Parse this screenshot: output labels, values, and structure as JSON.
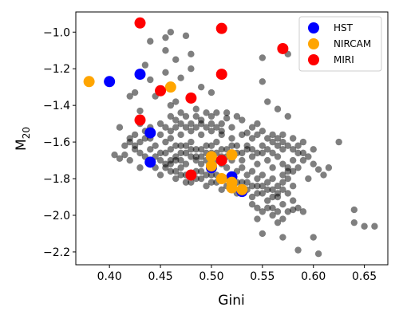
{
  "chart_data": {
    "type": "scatter",
    "xlabel": "Gini",
    "ylabel": "M20",
    "xlim": [
      0.367,
      0.673
    ],
    "ylim": [
      -2.27,
      -0.89
    ],
    "xticks": [
      0.4,
      0.45,
      0.5,
      0.55,
      0.6,
      0.65
    ],
    "xtick_labels": [
      "0.40",
      "0.45",
      "0.50",
      "0.55",
      "0.60",
      "0.65"
    ],
    "yticks": [
      -1.0,
      -1.2,
      -1.4,
      -1.6,
      -1.8,
      -2.0,
      -2.2
    ],
    "ytick_labels": [
      "−1.0",
      "−1.2",
      "−1.4",
      "−1.6",
      "−1.8",
      "−2.0",
      "−2.2"
    ],
    "grid": false,
    "legend_position": "top-right",
    "colors": {
      "background_points": "#000000",
      "HST": "#0000ff",
      "NIRCAM": "#ffa500",
      "MIRI": "#ff0000"
    },
    "background_cluster": {
      "description_note": "",
      "points": [
        [
          0.44,
          -1.05
        ],
        [
          0.455,
          -1.03
        ],
        [
          0.46,
          -1.0
        ],
        [
          0.475,
          -1.02
        ],
        [
          0.48,
          -1.12
        ],
        [
          0.455,
          -1.1
        ],
        [
          0.435,
          -1.18
        ],
        [
          0.44,
          -1.26
        ],
        [
          0.455,
          -1.22
        ],
        [
          0.42,
          -1.35
        ],
        [
          0.425,
          -1.33
        ],
        [
          0.43,
          -1.43
        ],
        [
          0.445,
          -1.35
        ],
        [
          0.46,
          -1.4
        ],
        [
          0.465,
          -1.38
        ],
        [
          0.47,
          -1.44
        ],
        [
          0.485,
          -1.42
        ],
        [
          0.49,
          -1.48
        ],
        [
          0.5,
          -1.46
        ],
        [
          0.51,
          -1.5
        ],
        [
          0.515,
          -1.47
        ],
        [
          0.52,
          -1.52
        ],
        [
          0.53,
          -1.48
        ],
        [
          0.535,
          -1.55
        ],
        [
          0.545,
          -1.5
        ],
        [
          0.55,
          -1.27
        ],
        [
          0.555,
          -1.38
        ],
        [
          0.565,
          -1.42
        ],
        [
          0.575,
          -1.46
        ],
        [
          0.58,
          -1.58
        ],
        [
          0.575,
          -1.12
        ],
        [
          0.55,
          -1.14
        ],
        [
          0.49,
          -1.3
        ],
        [
          0.5,
          -1.33
        ],
        [
          0.47,
          -1.25
        ],
        [
          0.48,
          -1.2
        ],
        [
          0.465,
          -1.15
        ],
        [
          0.45,
          -1.5
        ],
        [
          0.44,
          -1.52
        ],
        [
          0.43,
          -1.5
        ],
        [
          0.41,
          -1.52
        ],
        [
          0.42,
          -1.58
        ],
        [
          0.415,
          -1.67
        ],
        [
          0.41,
          -1.69
        ],
        [
          0.42,
          -1.7
        ],
        [
          0.43,
          -1.74
        ],
        [
          0.425,
          -1.64
        ],
        [
          0.435,
          -1.58
        ],
        [
          0.445,
          -1.62
        ],
        [
          0.45,
          -1.66
        ],
        [
          0.455,
          -1.6
        ],
        [
          0.46,
          -1.64
        ],
        [
          0.465,
          -1.68
        ],
        [
          0.47,
          -1.62
        ],
        [
          0.475,
          -1.66
        ],
        [
          0.48,
          -1.6
        ],
        [
          0.485,
          -1.64
        ],
        [
          0.49,
          -1.68
        ],
        [
          0.495,
          -1.62
        ],
        [
          0.5,
          -1.66
        ],
        [
          0.505,
          -1.6
        ],
        [
          0.51,
          -1.64
        ],
        [
          0.515,
          -1.68
        ],
        [
          0.52,
          -1.62
        ],
        [
          0.525,
          -1.66
        ],
        [
          0.53,
          -1.7
        ],
        [
          0.535,
          -1.64
        ],
        [
          0.54,
          -1.68
        ],
        [
          0.545,
          -1.72
        ],
        [
          0.55,
          -1.66
        ],
        [
          0.555,
          -1.7
        ],
        [
          0.56,
          -1.74
        ],
        [
          0.565,
          -1.68
        ],
        [
          0.57,
          -1.72
        ],
        [
          0.575,
          -1.76
        ],
        [
          0.58,
          -1.7
        ],
        [
          0.585,
          -1.74
        ],
        [
          0.59,
          -1.66
        ],
        [
          0.595,
          -1.8
        ],
        [
          0.6,
          -1.72
        ],
        [
          0.44,
          -1.7
        ],
        [
          0.445,
          -1.74
        ],
        [
          0.45,
          -1.78
        ],
        [
          0.455,
          -1.72
        ],
        [
          0.46,
          -1.76
        ],
        [
          0.465,
          -1.8
        ],
        [
          0.47,
          -1.74
        ],
        [
          0.475,
          -1.78
        ],
        [
          0.48,
          -1.82
        ],
        [
          0.485,
          -1.76
        ],
        [
          0.49,
          -1.8
        ],
        [
          0.495,
          -1.84
        ],
        [
          0.5,
          -1.78
        ],
        [
          0.505,
          -1.82
        ],
        [
          0.51,
          -1.86
        ],
        [
          0.515,
          -1.8
        ],
        [
          0.52,
          -1.84
        ],
        [
          0.525,
          -1.88
        ],
        [
          0.53,
          -1.82
        ],
        [
          0.535,
          -1.86
        ],
        [
          0.54,
          -1.9
        ],
        [
          0.545,
          -1.84
        ],
        [
          0.55,
          -1.88
        ],
        [
          0.555,
          -1.92
        ],
        [
          0.56,
          -1.86
        ],
        [
          0.565,
          -1.9
        ],
        [
          0.57,
          -1.94
        ],
        [
          0.575,
          -1.88
        ],
        [
          0.58,
          -1.92
        ],
        [
          0.585,
          -1.96
        ],
        [
          0.55,
          -1.98
        ],
        [
          0.545,
          -2.02
        ],
        [
          0.56,
          -2.0
        ],
        [
          0.565,
          -2.04
        ],
        [
          0.57,
          -2.02
        ],
        [
          0.59,
          -1.98
        ],
        [
          0.55,
          -2.1
        ],
        [
          0.57,
          -2.12
        ],
        [
          0.585,
          -2.19
        ],
        [
          0.6,
          -2.12
        ],
        [
          0.605,
          -2.21
        ],
        [
          0.64,
          -1.97
        ],
        [
          0.64,
          -2.04
        ],
        [
          0.65,
          -2.06
        ],
        [
          0.66,
          -2.06
        ],
        [
          0.625,
          -1.6
        ],
        [
          0.61,
          -1.78
        ],
        [
          0.605,
          -1.75
        ],
        [
          0.615,
          -1.74
        ],
        [
          0.59,
          -1.6
        ],
        [
          0.6,
          -1.64
        ],
        [
          0.57,
          -1.56
        ],
        [
          0.56,
          -1.6
        ],
        [
          0.54,
          -1.58
        ],
        [
          0.53,
          -1.56
        ],
        [
          0.52,
          -1.58
        ],
        [
          0.51,
          -1.56
        ],
        [
          0.5,
          -1.54
        ],
        [
          0.49,
          -1.56
        ],
        [
          0.48,
          -1.54
        ],
        [
          0.47,
          -1.56
        ],
        [
          0.46,
          -1.58
        ],
        [
          0.45,
          -1.56
        ],
        [
          0.44,
          -1.58
        ],
        [
          0.465,
          -1.7
        ],
        [
          0.47,
          -1.7
        ],
        [
          0.475,
          -1.72
        ],
        [
          0.48,
          -1.68
        ],
        [
          0.485,
          -1.7
        ],
        [
          0.49,
          -1.72
        ],
        [
          0.495,
          -1.7
        ],
        [
          0.5,
          -1.74
        ],
        [
          0.505,
          -1.7
        ],
        [
          0.51,
          -1.72
        ],
        [
          0.515,
          -1.74
        ],
        [
          0.52,
          -1.7
        ],
        [
          0.525,
          -1.76
        ],
        [
          0.53,
          -1.74
        ],
        [
          0.535,
          -1.78
        ],
        [
          0.54,
          -1.76
        ],
        [
          0.545,
          -1.8
        ],
        [
          0.55,
          -1.78
        ],
        [
          0.555,
          -1.82
        ],
        [
          0.56,
          -1.8
        ],
        [
          0.565,
          -1.84
        ],
        [
          0.57,
          -1.82
        ],
        [
          0.575,
          -1.8
        ],
        [
          0.58,
          -1.84
        ],
        [
          0.455,
          -1.66
        ],
        [
          0.46,
          -1.7
        ],
        [
          0.465,
          -1.62
        ],
        [
          0.47,
          -1.66
        ],
        [
          0.475,
          -1.62
        ],
        [
          0.48,
          -1.64
        ],
        [
          0.485,
          -1.68
        ],
        [
          0.49,
          -1.64
        ],
        [
          0.495,
          -1.66
        ],
        [
          0.5,
          -1.62
        ],
        [
          0.505,
          -1.66
        ],
        [
          0.51,
          -1.68
        ],
        [
          0.515,
          -1.64
        ],
        [
          0.52,
          -1.66
        ],
        [
          0.525,
          -1.62
        ],
        [
          0.53,
          -1.66
        ],
        [
          0.535,
          -1.62
        ],
        [
          0.54,
          -1.64
        ],
        [
          0.545,
          -1.66
        ],
        [
          0.55,
          -1.62
        ],
        [
          0.555,
          -1.64
        ],
        [
          0.56,
          -1.66
        ],
        [
          0.565,
          -1.62
        ],
        [
          0.57,
          -1.64
        ],
        [
          0.42,
          -1.6
        ],
        [
          0.425,
          -1.62
        ],
        [
          0.43,
          -1.66
        ],
        [
          0.435,
          -1.68
        ],
        [
          0.44,
          -1.64
        ],
        [
          0.445,
          -1.68
        ],
        [
          0.45,
          -1.7
        ],
        [
          0.455,
          -1.74
        ],
        [
          0.46,
          -1.72
        ],
        [
          0.465,
          -1.76
        ],
        [
          0.47,
          -1.78
        ],
        [
          0.475,
          -1.82
        ],
        [
          0.48,
          -1.78
        ],
        [
          0.485,
          -1.8
        ],
        [
          0.49,
          -1.76
        ],
        [
          0.495,
          -1.78
        ],
        [
          0.5,
          -1.82
        ],
        [
          0.505,
          -1.78
        ],
        [
          0.51,
          -1.8
        ],
        [
          0.515,
          -1.84
        ],
        [
          0.52,
          -1.8
        ],
        [
          0.525,
          -1.82
        ],
        [
          0.53,
          -1.86
        ],
        [
          0.535,
          -1.82
        ],
        [
          0.54,
          -1.84
        ],
        [
          0.545,
          -1.88
        ],
        [
          0.55,
          -1.84
        ],
        [
          0.555,
          -1.86
        ],
        [
          0.56,
          -1.9
        ],
        [
          0.565,
          -1.88
        ],
        [
          0.47,
          -1.5
        ],
        [
          0.475,
          -1.52
        ],
        [
          0.48,
          -1.5
        ],
        [
          0.485,
          -1.52
        ],
        [
          0.49,
          -1.5
        ],
        [
          0.495,
          -1.52
        ],
        [
          0.5,
          -1.5
        ],
        [
          0.505,
          -1.52
        ],
        [
          0.51,
          -1.54
        ],
        [
          0.455,
          -1.52
        ],
        [
          0.46,
          -1.54
        ],
        [
          0.465,
          -1.52
        ],
        [
          0.435,
          -1.54
        ],
        [
          0.44,
          -1.56
        ],
        [
          0.43,
          -1.6
        ],
        [
          0.425,
          -1.56
        ],
        [
          0.415,
          -1.62
        ],
        [
          0.405,
          -1.67
        ],
        [
          0.46,
          -1.46
        ],
        [
          0.465,
          -1.48
        ],
        [
          0.475,
          -1.46
        ],
        [
          0.485,
          -1.46
        ],
        [
          0.495,
          -1.44
        ],
        [
          0.505,
          -1.44
        ],
        [
          0.515,
          -1.44
        ],
        [
          0.525,
          -1.46
        ],
        [
          0.54,
          -1.52
        ],
        [
          0.545,
          -1.56
        ],
        [
          0.55,
          -1.54
        ],
        [
          0.555,
          -1.58
        ],
        [
          0.56,
          -1.56
        ],
        [
          0.565,
          -1.58
        ],
        [
          0.57,
          -1.6
        ],
        [
          0.575,
          -1.62
        ],
        [
          0.58,
          -1.64
        ],
        [
          0.585,
          -1.62
        ],
        [
          0.59,
          -1.7
        ],
        [
          0.595,
          -1.68
        ],
        [
          0.585,
          -1.66
        ],
        [
          0.58,
          -1.76
        ],
        [
          0.575,
          -1.74
        ],
        [
          0.57,
          -1.78
        ],
        [
          0.56,
          -1.96
        ],
        [
          0.555,
          -1.96
        ],
        [
          0.54,
          -1.94
        ],
        [
          0.545,
          -1.96
        ],
        [
          0.565,
          -1.98
        ],
        [
          0.575,
          -1.98
        ],
        [
          0.58,
          -1.97
        ],
        [
          0.57,
          -1.86
        ]
      ]
    },
    "series": [
      {
        "name": "HST",
        "points": [
          [
            0.4,
            -1.27
          ],
          [
            0.43,
            -1.23
          ],
          [
            0.44,
            -1.55
          ],
          [
            0.44,
            -1.71
          ],
          [
            0.5,
            -1.74
          ],
          [
            0.52,
            -1.79
          ],
          [
            0.53,
            -1.87
          ]
        ]
      },
      {
        "name": "NIRCAM",
        "points": [
          [
            0.38,
            -1.27
          ],
          [
            0.46,
            -1.3
          ],
          [
            0.5,
            -1.68
          ],
          [
            0.5,
            -1.73
          ],
          [
            0.51,
            -1.8
          ],
          [
            0.52,
            -1.67
          ],
          [
            0.52,
            -1.82
          ],
          [
            0.52,
            -1.85
          ],
          [
            0.53,
            -1.86
          ]
        ]
      },
      {
        "name": "MIRI",
        "points": [
          [
            0.43,
            -0.95
          ],
          [
            0.43,
            -1.48
          ],
          [
            0.45,
            -1.32
          ],
          [
            0.48,
            -1.36
          ],
          [
            0.48,
            -1.78
          ],
          [
            0.51,
            -0.98
          ],
          [
            0.51,
            -1.23
          ],
          [
            0.51,
            -1.7
          ],
          [
            0.57,
            -1.09
          ]
        ]
      }
    ]
  }
}
